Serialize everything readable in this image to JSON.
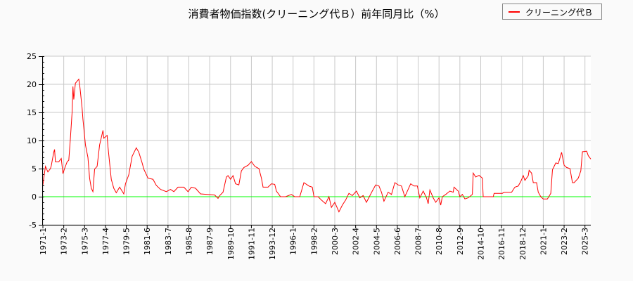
{
  "chart_data": {
    "type": "line",
    "title": "消費者物価指数(クリーニング代Ｂ）前年同月比（%）",
    "xlabel": "",
    "ylabel": "",
    "ylim": [
      -5,
      25
    ],
    "yticks": [
      -5,
      0,
      5,
      10,
      15,
      20,
      25
    ],
    "x_unit": "months since 1971-1",
    "xlim": [
      0,
      657
    ],
    "xticks": [
      {
        "m": 0,
        "label": "1971-1"
      },
      {
        "m": 25,
        "label": "1973-2"
      },
      {
        "m": 50,
        "label": "1975-3"
      },
      {
        "m": 75,
        "label": "1977-4"
      },
      {
        "m": 100,
        "label": "1979-5"
      },
      {
        "m": 125,
        "label": "1981-6"
      },
      {
        "m": 150,
        "label": "1983-7"
      },
      {
        "m": 175,
        "label": "1985-8"
      },
      {
        "m": 200,
        "label": "1987-9"
      },
      {
        "m": 225,
        "label": "1989-10"
      },
      {
        "m": 250,
        "label": "1991-11"
      },
      {
        "m": 275,
        "label": "1993-12"
      },
      {
        "m": 300,
        "label": "1996-1"
      },
      {
        "m": 325,
        "label": "1998-2"
      },
      {
        "m": 350,
        "label": "2000-3"
      },
      {
        "m": 375,
        "label": "2002-4"
      },
      {
        "m": 400,
        "label": "2004-5"
      },
      {
        "m": 425,
        "label": "2006-6"
      },
      {
        "m": 450,
        "label": "2008-7"
      },
      {
        "m": 475,
        "label": "2010-8"
      },
      {
        "m": 500,
        "label": "2012-9"
      },
      {
        "m": 525,
        "label": "2014-10"
      },
      {
        "m": 550,
        "label": "2016-11"
      },
      {
        "m": 575,
        "label": "2018-12"
      },
      {
        "m": 600,
        "label": "2021-1"
      },
      {
        "m": 625,
        "label": "2023-2"
      },
      {
        "m": 650,
        "label": "2025-3"
      }
    ],
    "grid": true,
    "legend_position": "top-right",
    "reference_line": {
      "y": 0,
      "color": "#00ff00"
    },
    "series": [
      {
        "name": "クリーニング代Ｂ",
        "color": "#ff0000",
        "points": [
          [
            0,
            2.1
          ],
          [
            3,
            5.4
          ],
          [
            6,
            4.4
          ],
          [
            9,
            5.0
          ],
          [
            10,
            5.5
          ],
          [
            13,
            7.9
          ],
          [
            14,
            8.4
          ],
          [
            15,
            6.2
          ],
          [
            19,
            6.2
          ],
          [
            22,
            6.8
          ],
          [
            24,
            4.1
          ],
          [
            26,
            5.0
          ],
          [
            29,
            6.2
          ],
          [
            31,
            6.5
          ],
          [
            33,
            10.4
          ],
          [
            35,
            15
          ],
          [
            36,
            19.6
          ],
          [
            37,
            17.3
          ],
          [
            39,
            20.2
          ],
          [
            43,
            20.9
          ],
          [
            44,
            20
          ],
          [
            47,
            15.8
          ],
          [
            48,
            13.8
          ],
          [
            51,
            9.2
          ],
          [
            54,
            7.0
          ],
          [
            56,
            3.3
          ],
          [
            58,
            1.5
          ],
          [
            60,
            0.9
          ],
          [
            62,
            4.9
          ],
          [
            65,
            5.4
          ],
          [
            68,
            9.2
          ],
          [
            72,
            11.8
          ],
          [
            73,
            10.4
          ],
          [
            77,
            10.9
          ],
          [
            78,
            8.9
          ],
          [
            82,
            3.1
          ],
          [
            85,
            1.5
          ],
          [
            88,
            0.7
          ],
          [
            92,
            1.7
          ],
          [
            97,
            0.5
          ],
          [
            99,
            2.3
          ],
          [
            103,
            3.9
          ],
          [
            107,
            7.2
          ],
          [
            112,
            8.7
          ],
          [
            115,
            7.9
          ],
          [
            119,
            6.0
          ],
          [
            121,
            4.9
          ],
          [
            126,
            3.3
          ],
          [
            132,
            3.1
          ],
          [
            136,
            2.0
          ],
          [
            141,
            1.3
          ],
          [
            148,
            0.9
          ],
          [
            153,
            1.3
          ],
          [
            157,
            0.9
          ],
          [
            162,
            1.7
          ],
          [
            169,
            1.7
          ],
          [
            174,
            0.9
          ],
          [
            178,
            1.7
          ],
          [
            183,
            1.5
          ],
          [
            189,
            0.5
          ],
          [
            197,
            0.4
          ],
          [
            206,
            0.3
          ],
          [
            210,
            -0.3
          ],
          [
            212,
            0.2
          ],
          [
            216,
            0.8
          ],
          [
            220,
            3.5
          ],
          [
            222,
            3.75
          ],
          [
            225,
            3.1
          ],
          [
            228,
            3.75
          ],
          [
            231,
            2.3
          ],
          [
            235,
            2.1
          ],
          [
            238,
            4.6
          ],
          [
            241,
            5.2
          ],
          [
            246,
            5.6
          ],
          [
            250,
            6.25
          ],
          [
            254,
            5.4
          ],
          [
            259,
            5.0
          ],
          [
            262,
            3.3
          ],
          [
            264,
            1.7
          ],
          [
            270,
            1.7
          ],
          [
            274,
            2.3
          ],
          [
            278,
            2.2
          ],
          [
            280,
            1.0
          ],
          [
            285,
            0
          ],
          [
            291,
            0
          ],
          [
            298,
            0.4
          ],
          [
            302,
            0
          ],
          [
            308,
            0
          ],
          [
            313,
            2.5
          ],
          [
            317,
            2.1
          ],
          [
            319,
            1.9
          ],
          [
            323,
            1.7
          ],
          [
            325,
            0
          ],
          [
            330,
            0
          ],
          [
            334,
            -0.6
          ],
          [
            339,
            -1.25
          ],
          [
            343,
            0
          ],
          [
            346,
            -1.9
          ],
          [
            350,
            -1.0
          ],
          [
            355,
            -2.7
          ],
          [
            359,
            -1.5
          ],
          [
            363,
            -0.6
          ],
          [
            367,
            0.6
          ],
          [
            371,
            0.2
          ],
          [
            376,
            1.0
          ],
          [
            380,
            -0.2
          ],
          [
            384,
            0.2
          ],
          [
            388,
            -1.0
          ],
          [
            395,
            1.0
          ],
          [
            399,
            2.1
          ],
          [
            403,
            1.9
          ],
          [
            406,
            0.8
          ],
          [
            409,
            -0.8
          ],
          [
            414,
            0.8
          ],
          [
            418,
            0.4
          ],
          [
            422,
            2.5
          ],
          [
            426,
            2.1
          ],
          [
            430,
            1.9
          ],
          [
            434,
            0
          ],
          [
            441,
            2.3
          ],
          [
            445,
            1.9
          ],
          [
            449,
            1.9
          ],
          [
            452,
            -0.2
          ],
          [
            456,
            1.0
          ],
          [
            460,
            -0.2
          ],
          [
            462,
            -1.25
          ],
          [
            464,
            1.2
          ],
          [
            468,
            -0.2
          ],
          [
            471,
            -1.0
          ],
          [
            475,
            -0.2
          ],
          [
            477,
            -1.5
          ],
          [
            479,
            0
          ],
          [
            483,
            0.4
          ],
          [
            488,
            1.0
          ],
          [
            492,
            0.8
          ],
          [
            493,
            1.7
          ],
          [
            498,
            1.0
          ],
          [
            500,
            0
          ],
          [
            503,
            0.4
          ],
          [
            506,
            -0.4
          ],
          [
            510,
            -0.2
          ],
          [
            515,
            0.4
          ],
          [
            516,
            4.2
          ],
          [
            519,
            3.5
          ],
          [
            523,
            3.8
          ],
          [
            527,
            3.3
          ],
          [
            528,
            0
          ],
          [
            540,
            0
          ],
          [
            541,
            0.6
          ],
          [
            551,
            0.6
          ],
          [
            553,
            0.8
          ],
          [
            562,
            0.8
          ],
          [
            566,
            1.7
          ],
          [
            570,
            1.9
          ],
          [
            573,
            2.7
          ],
          [
            576,
            3.75
          ],
          [
            578,
            2.9
          ],
          [
            582,
            3.75
          ],
          [
            583,
            4.7
          ],
          [
            586,
            4.2
          ],
          [
            588,
            2.5
          ],
          [
            592,
            2.5
          ],
          [
            594,
            0.8
          ],
          [
            597,
            0
          ],
          [
            600,
            -0.4
          ],
          [
            605,
            -0.4
          ],
          [
            609,
            0.6
          ],
          [
            611,
            4.8
          ],
          [
            615,
            6.0
          ],
          [
            618,
            5.9
          ],
          [
            622,
            7.9
          ],
          [
            625,
            5.6
          ],
          [
            628,
            5.2
          ],
          [
            632,
            5.0
          ],
          [
            635,
            2.5
          ],
          [
            637,
            2.5
          ],
          [
            642,
            3.3
          ],
          [
            645,
            4.6
          ],
          [
            647,
            8.0
          ],
          [
            652,
            8.1
          ],
          [
            654,
            7.3
          ],
          [
            657,
            6.7
          ]
        ]
      }
    ]
  }
}
